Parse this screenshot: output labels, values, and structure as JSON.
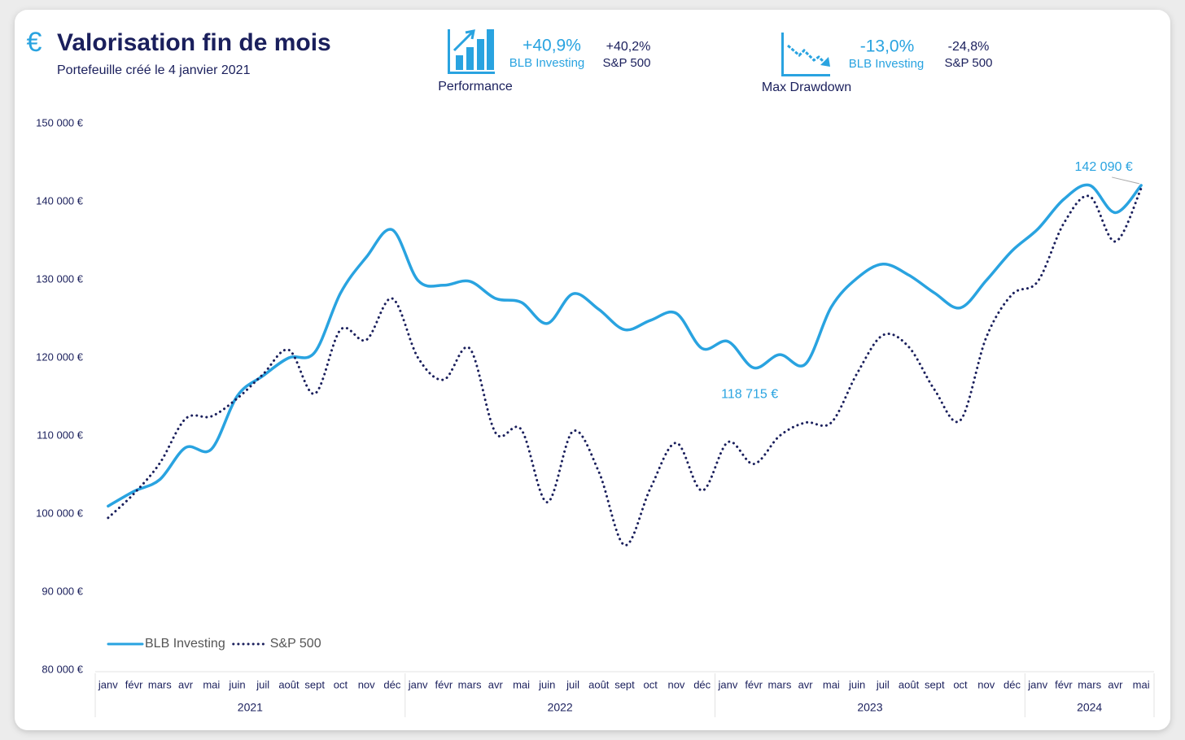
{
  "chart_data": {
    "type": "line",
    "title": "Valorisation fin de mois",
    "subtitle": "Portefeuille créé le 4 janvier 2021",
    "icon": "€",
    "kpis": [
      {
        "label": "Performance",
        "items": [
          {
            "value": "+40,9%",
            "name": "BLB Investing"
          },
          {
            "value": "+40,2%",
            "name": "S&P 500"
          }
        ]
      },
      {
        "label": "Max Drawdown",
        "items": [
          {
            "value": "-13,0%",
            "name": "BLB Investing"
          },
          {
            "value": "-24,8%",
            "name": "S&P 500"
          }
        ]
      }
    ],
    "categories": [
      "janv",
      "févr",
      "mars",
      "avr",
      "mai",
      "juin",
      "juil",
      "août",
      "sept",
      "oct",
      "nov",
      "déc",
      "janv",
      "févr",
      "mars",
      "avr",
      "mai",
      "juin",
      "juil",
      "août",
      "sept",
      "oct",
      "nov",
      "déc",
      "janv",
      "févr",
      "mars",
      "avr",
      "mai",
      "juin",
      "juil",
      "août",
      "sept",
      "oct",
      "nov",
      "déc",
      "janv",
      "févr",
      "mars",
      "avr",
      "mai"
    ],
    "year_groups": [
      {
        "label": "2021",
        "months": 12
      },
      {
        "label": "2022",
        "months": 12
      },
      {
        "label": "2023",
        "months": 12
      },
      {
        "label": "2024",
        "months": 5
      }
    ],
    "series": [
      {
        "name": "BLB Investing",
        "color": "#29a3e0",
        "style": "solid",
        "values": [
          101000,
          102900,
          104400,
          108500,
          108300,
          115100,
          117700,
          120000,
          120700,
          128300,
          132900,
          136400,
          129900,
          129300,
          129800,
          127600,
          127100,
          124400,
          128200,
          126200,
          123600,
          124800,
          125700,
          121200,
          122100,
          118715,
          120400,
          119200,
          126500,
          130200,
          132000,
          130600,
          128300,
          126400,
          129900,
          133700,
          136500,
          140300,
          142100,
          138600,
          142090
        ]
      },
      {
        "name": "S&P 500",
        "color": "#1a1f5c",
        "style": "dotted",
        "values": [
          99500,
          102600,
          106500,
          112200,
          112500,
          114800,
          117900,
          121000,
          115400,
          123600,
          122300,
          127600,
          120000,
          117200,
          121200,
          110400,
          110800,
          101500,
          110600,
          105400,
          96000,
          103300,
          109100,
          103000,
          109200,
          106400,
          110000,
          111700,
          111700,
          118000,
          122900,
          121400,
          115900,
          112000,
          122600,
          128100,
          129800,
          137200,
          140700,
          134900,
          141700
        ]
      }
    ],
    "annotations": [
      {
        "text": "142 090 €",
        "series": 0,
        "index": 40
      },
      {
        "text": "118 715 €",
        "series": 0,
        "index": 25
      }
    ],
    "ylim": [
      80000,
      150000
    ],
    "yticks": [
      {
        "value": 80000,
        "label": "80 000 €"
      },
      {
        "value": 90000,
        "label": "90 000 €"
      },
      {
        "value": 100000,
        "label": "100 000 €"
      },
      {
        "value": 110000,
        "label": "110 000 €"
      },
      {
        "value": 120000,
        "label": "120 000 €"
      },
      {
        "value": 130000,
        "label": "130 000 €"
      },
      {
        "value": 140000,
        "label": "140 000 €"
      },
      {
        "value": 150000,
        "label": "150 000 €"
      }
    ],
    "grid": false,
    "legend": "bottom-left"
  }
}
